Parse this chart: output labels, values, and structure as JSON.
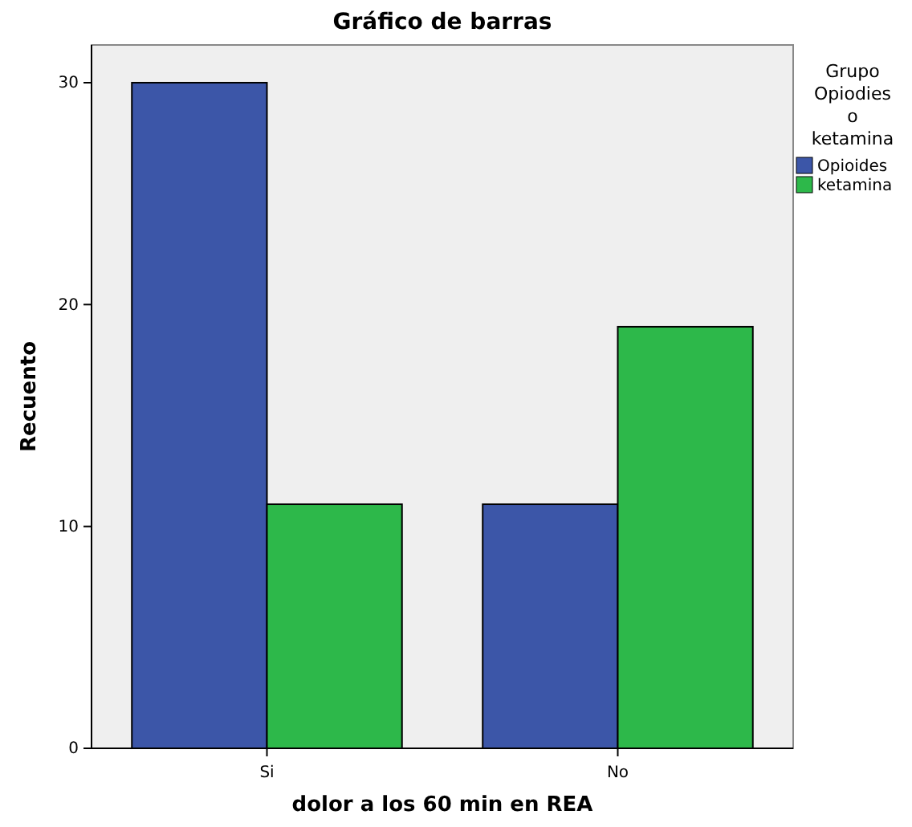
{
  "chart_data": {
    "type": "bar",
    "title": "Gráfico de barras",
    "xlabel": "dolor a los 60 min en REA",
    "ylabel": "Recuento",
    "legend_title": "Grupo Opiodies o ketamina",
    "categories": [
      "Si",
      "No"
    ],
    "series": [
      {
        "name": "Opioides",
        "color": "#3c56a8",
        "values": [
          30,
          11
        ]
      },
      {
        "name": "ketamina",
        "color": "#2db84a",
        "values": [
          11,
          19
        ]
      }
    ],
    "ylim": [
      0,
      31.7
    ],
    "yticks": [
      0,
      10,
      20,
      30
    ],
    "legend": "right",
    "grid": false
  }
}
